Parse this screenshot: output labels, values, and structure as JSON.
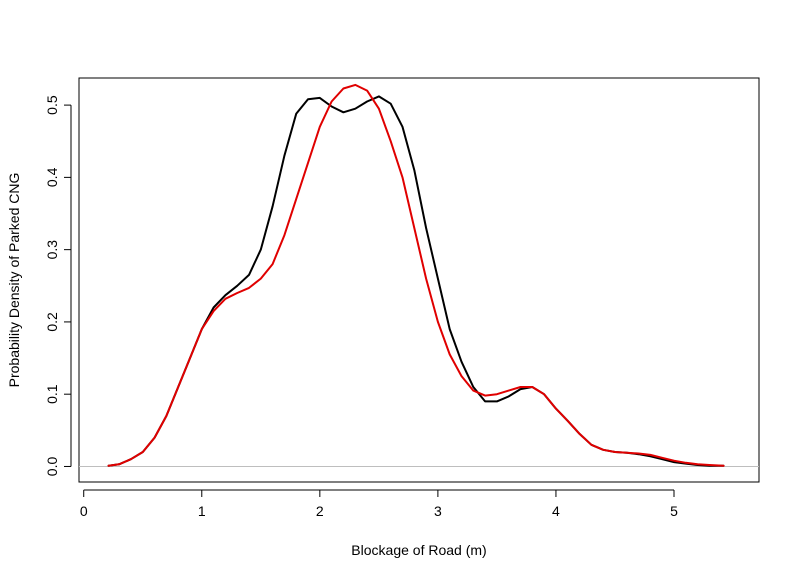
{
  "chart_data": {
    "type": "line",
    "title": "",
    "xlabel": "Blockage of Road (m)",
    "ylabel": "Probability Density of Parked CNG",
    "xlim": [
      -0.04,
      5.72
    ],
    "ylim": [
      -0.0215,
      0.5375
    ],
    "x_ticks": [
      "0",
      "1",
      "2",
      "3",
      "4",
      "5"
    ],
    "y_ticks": [
      "0.0",
      "0.1",
      "0.2",
      "0.3",
      "0.4",
      "0.5"
    ],
    "baseline": 0,
    "colors": {
      "series_1": "#000000",
      "series_2": "#e00000",
      "baseline": "#bebebe"
    },
    "series": [
      {
        "color": "#000000",
        "points": [
          [
            0.21,
            0.001
          ],
          [
            0.3,
            0.003
          ],
          [
            0.4,
            0.01
          ],
          [
            0.5,
            0.02
          ],
          [
            0.6,
            0.04
          ],
          [
            0.7,
            0.07
          ],
          [
            0.8,
            0.11
          ],
          [
            0.9,
            0.15
          ],
          [
            1.0,
            0.19
          ],
          [
            1.1,
            0.22
          ],
          [
            1.2,
            0.237
          ],
          [
            1.3,
            0.25
          ],
          [
            1.4,
            0.265
          ],
          [
            1.5,
            0.3
          ],
          [
            1.6,
            0.36
          ],
          [
            1.7,
            0.43
          ],
          [
            1.8,
            0.488
          ],
          [
            1.9,
            0.508
          ],
          [
            2.0,
            0.51
          ],
          [
            2.1,
            0.498
          ],
          [
            2.2,
            0.49
          ],
          [
            2.3,
            0.495
          ],
          [
            2.4,
            0.505
          ],
          [
            2.5,
            0.512
          ],
          [
            2.6,
            0.502
          ],
          [
            2.7,
            0.47
          ],
          [
            2.8,
            0.41
          ],
          [
            2.9,
            0.33
          ],
          [
            3.0,
            0.26
          ],
          [
            3.1,
            0.19
          ],
          [
            3.2,
            0.145
          ],
          [
            3.3,
            0.11
          ],
          [
            3.4,
            0.09
          ],
          [
            3.5,
            0.09
          ],
          [
            3.6,
            0.097
          ],
          [
            3.7,
            0.107
          ],
          [
            3.8,
            0.11
          ],
          [
            3.9,
            0.1
          ],
          [
            4.0,
            0.08
          ],
          [
            4.1,
            0.063
          ],
          [
            4.2,
            0.045
          ],
          [
            4.3,
            0.03
          ],
          [
            4.4,
            0.023
          ],
          [
            4.5,
            0.02
          ],
          [
            4.6,
            0.019
          ],
          [
            4.7,
            0.017
          ],
          [
            4.8,
            0.014
          ],
          [
            4.9,
            0.01
          ],
          [
            5.0,
            0.006
          ],
          [
            5.1,
            0.004
          ],
          [
            5.2,
            0.002
          ],
          [
            5.3,
            0.001
          ],
          [
            5.42,
            0.001
          ]
        ]
      },
      {
        "color": "#e00000",
        "points": [
          [
            0.21,
            0.001
          ],
          [
            0.3,
            0.003
          ],
          [
            0.4,
            0.01
          ],
          [
            0.5,
            0.02
          ],
          [
            0.6,
            0.04
          ],
          [
            0.7,
            0.07
          ],
          [
            0.8,
            0.11
          ],
          [
            0.9,
            0.15
          ],
          [
            1.0,
            0.19
          ],
          [
            1.1,
            0.215
          ],
          [
            1.2,
            0.232
          ],
          [
            1.3,
            0.24
          ],
          [
            1.4,
            0.247
          ],
          [
            1.5,
            0.26
          ],
          [
            1.6,
            0.28
          ],
          [
            1.7,
            0.32
          ],
          [
            1.8,
            0.37
          ],
          [
            1.9,
            0.42
          ],
          [
            2.0,
            0.47
          ],
          [
            2.1,
            0.505
          ],
          [
            2.2,
            0.523
          ],
          [
            2.3,
            0.528
          ],
          [
            2.4,
            0.52
          ],
          [
            2.5,
            0.495
          ],
          [
            2.6,
            0.45
          ],
          [
            2.7,
            0.4
          ],
          [
            2.8,
            0.33
          ],
          [
            2.9,
            0.26
          ],
          [
            3.0,
            0.2
          ],
          [
            3.1,
            0.155
          ],
          [
            3.2,
            0.125
          ],
          [
            3.3,
            0.105
          ],
          [
            3.4,
            0.098
          ],
          [
            3.5,
            0.1
          ],
          [
            3.6,
            0.105
          ],
          [
            3.7,
            0.11
          ],
          [
            3.8,
            0.11
          ],
          [
            3.9,
            0.1
          ],
          [
            4.0,
            0.08
          ],
          [
            4.1,
            0.063
          ],
          [
            4.2,
            0.045
          ],
          [
            4.3,
            0.03
          ],
          [
            4.4,
            0.023
          ],
          [
            4.5,
            0.02
          ],
          [
            4.6,
            0.019
          ],
          [
            4.7,
            0.018
          ],
          [
            4.8,
            0.016
          ],
          [
            4.9,
            0.012
          ],
          [
            5.0,
            0.008
          ],
          [
            5.1,
            0.005
          ],
          [
            5.2,
            0.003
          ],
          [
            5.3,
            0.002
          ],
          [
            5.42,
            0.001
          ]
        ]
      }
    ]
  }
}
